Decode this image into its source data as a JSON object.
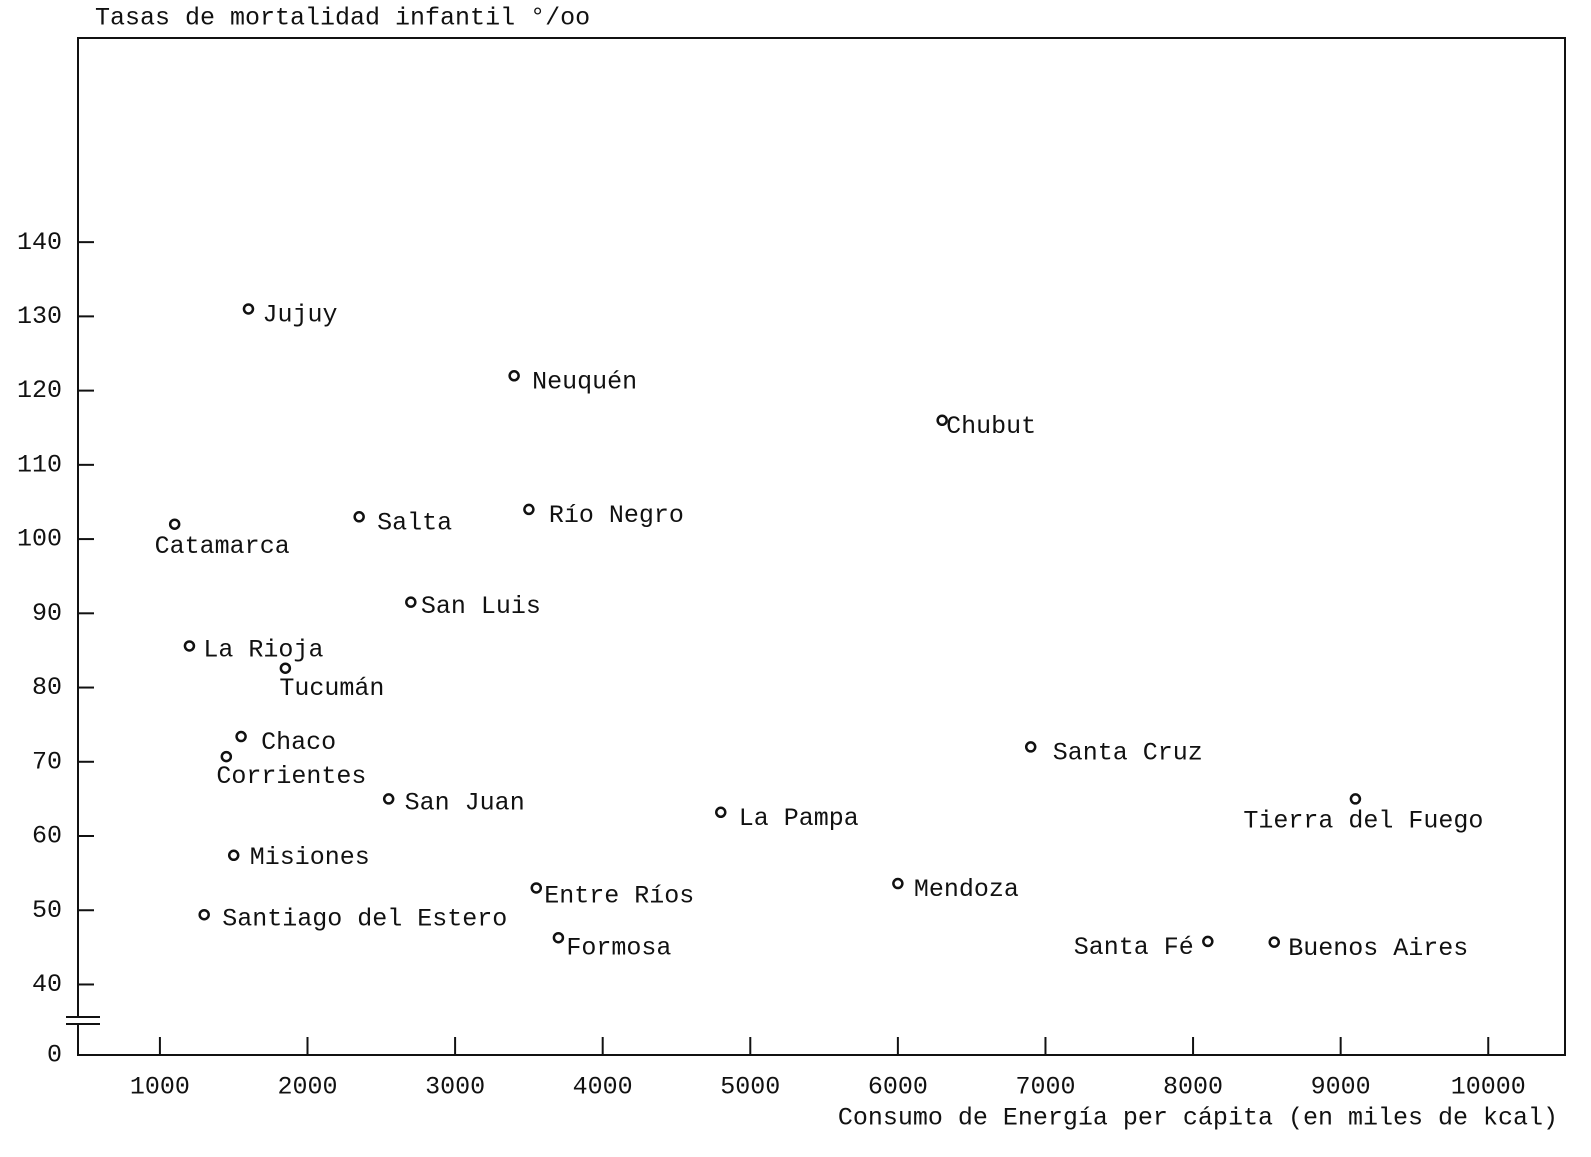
{
  "chart_data": {
    "type": "scatter",
    "y_label": "Tasas de mortalidad infantil °/oo",
    "x_label": "Consumo de Energía per cápita (en miles de kcal)",
    "color": "#111111",
    "categories": [
      "Jujuy",
      "Neuquén",
      "Chubut",
      "Catamarca",
      "Salta",
      "Río Negro",
      "San Luis",
      "La Rioja",
      "Tucumán",
      "Chaco",
      "Corrientes",
      "San Juan",
      "La Pampa",
      "Misiones",
      "Santiago del Estero",
      "Entre Ríos",
      "Formosa",
      "Mendoza",
      "Santa Cruz",
      "Tierra del Fuego",
      "Santa Fé",
      "Buenos Aires"
    ],
    "x": [
      1600,
      3400,
      6300,
      1100,
      2350,
      3500,
      2700,
      1200,
      1850,
      1550,
      1450,
      2550,
      4800,
      1500,
      1300,
      3550,
      3700,
      6000,
      6900,
      9100,
      8100,
      8550
    ],
    "values": [
      131,
      122,
      116,
      102,
      103,
      104,
      91.5,
      85.6,
      82.6,
      73.4,
      70.7,
      65,
      63.2,
      57.4,
      49.4,
      53,
      46.3,
      53.6,
      72,
      65,
      45.8,
      45.7
    ],
    "xlim": [
      445,
      10520
    ],
    "ylim": [
      30.5,
      167.5
    ],
    "xticks": [
      1000,
      2000,
      3000,
      4000,
      5000,
      6000,
      7000,
      8000,
      9000,
      10000
    ],
    "yticks": [
      0,
      40,
      50,
      60,
      70,
      80,
      90,
      100,
      110,
      120,
      130,
      140
    ],
    "y_break": true
  }
}
